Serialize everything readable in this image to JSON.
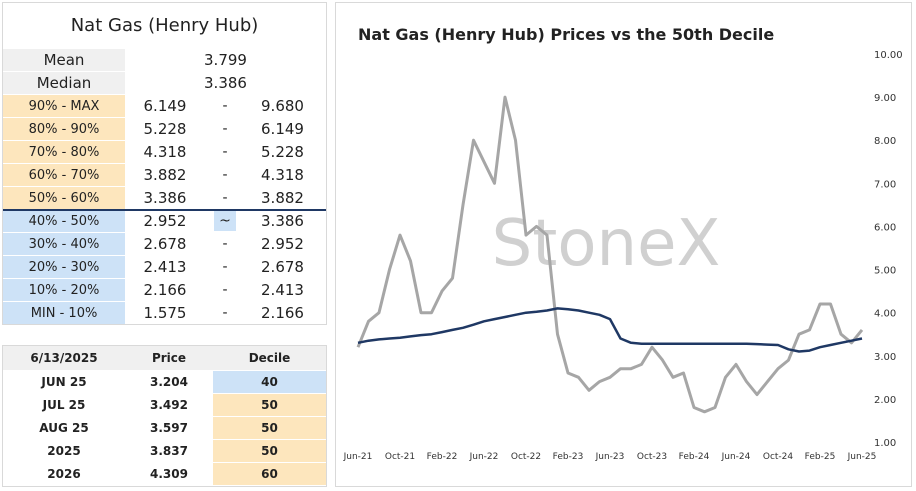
{
  "summary": {
    "title": "Nat Gas (Henry Hub)",
    "stats": [
      {
        "label": "Mean",
        "value": "3.799"
      },
      {
        "label": "Median",
        "value": "3.386"
      }
    ],
    "ranges": [
      {
        "label": "90% - MAX",
        "low": "6.149",
        "sep": "-",
        "high": "9.680"
      },
      {
        "label": "80% - 90%",
        "low": "5.228",
        "sep": "-",
        "high": "6.149"
      },
      {
        "label": "70% - 80%",
        "low": "4.318",
        "sep": "-",
        "high": "5.228"
      },
      {
        "label": "60% - 70%",
        "low": "3.882",
        "sep": "-",
        "high": "4.318"
      },
      {
        "label": "50% - 60%",
        "low": "3.386",
        "sep": "-",
        "high": "3.882"
      },
      {
        "label": "40% - 50%",
        "low": "2.952",
        "sep": "~",
        "high": "3.386"
      },
      {
        "label": "30% - 40%",
        "low": "2.678",
        "sep": "-",
        "high": "2.952"
      },
      {
        "label": "20% - 30%",
        "low": "2.413",
        "sep": "-",
        "high": "2.678"
      },
      {
        "label": "10% - 20%",
        "low": "2.166",
        "sep": "-",
        "high": "2.413"
      },
      {
        "label": "MIN - 10%",
        "low": "1.575",
        "sep": "-",
        "high": "2.166"
      }
    ]
  },
  "contracts": {
    "header": [
      "6/13/2025",
      "Price",
      "Decile"
    ],
    "rows": [
      [
        "JUN 25",
        "3.204",
        "40"
      ],
      [
        "JUL 25",
        "3.492",
        "50"
      ],
      [
        "AUG 25",
        "3.597",
        "50"
      ],
      [
        "2025",
        "3.837",
        "50"
      ],
      [
        "2026",
        "4.309",
        "60"
      ]
    ]
  },
  "chart_data": {
    "type": "line",
    "title": "Nat Gas (Henry Hub) Prices vs the 50th Decile",
    "watermark": "StoneX",
    "categories": [
      "Jun-21",
      null,
      null,
      null,
      "Oct-21",
      null,
      null,
      null,
      "Feb-22",
      null,
      null,
      null,
      "Jun-22",
      null,
      null,
      null,
      "Oct-22",
      null,
      null,
      null,
      "Feb-23",
      null,
      null,
      null,
      "Jun-23",
      null,
      null,
      null,
      "Oct-23",
      null,
      null,
      null,
      "Feb-24",
      null,
      null,
      null,
      "Jun-24",
      null,
      null,
      null,
      "Oct-24",
      null,
      null,
      null,
      "Feb-25",
      null,
      null,
      null,
      "Jun-25"
    ],
    "series": [
      {
        "name": "Price",
        "color": "#a6a6a6",
        "values": [
          3.2,
          3.8,
          4.0,
          5.0,
          5.8,
          5.2,
          4.0,
          4.0,
          4.5,
          4.8,
          6.5,
          8.0,
          7.5,
          7.0,
          9.0,
          8.0,
          5.8,
          6.0,
          5.8,
          3.5,
          2.6,
          2.5,
          2.2,
          2.4,
          2.5,
          2.7,
          2.7,
          2.8,
          3.2,
          2.9,
          2.5,
          2.6,
          1.8,
          1.7,
          1.8,
          2.5,
          2.8,
          2.4,
          2.1,
          2.4,
          2.7,
          2.9,
          3.5,
          3.6,
          4.2,
          4.2,
          3.5,
          3.3,
          3.6
        ]
      },
      {
        "name": "50th Decile",
        "color": "#1f3864",
        "values": [
          3.3,
          3.35,
          3.38,
          3.4,
          3.42,
          3.45,
          3.48,
          3.5,
          3.55,
          3.6,
          3.65,
          3.72,
          3.8,
          3.85,
          3.9,
          3.95,
          4.0,
          4.02,
          4.05,
          4.1,
          4.08,
          4.05,
          4.0,
          3.95,
          3.85,
          3.4,
          3.3,
          3.28,
          3.28,
          3.28,
          3.28,
          3.28,
          3.28,
          3.28,
          3.28,
          3.28,
          3.28,
          3.28,
          3.27,
          3.26,
          3.25,
          3.15,
          3.1,
          3.12,
          3.2,
          3.25,
          3.3,
          3.35,
          3.4
        ]
      }
    ],
    "ylim": [
      1,
      10
    ],
    "yticks": [
      {
        "value": 1,
        "label": "1.00"
      },
      {
        "value": 2,
        "label": "2.00"
      },
      {
        "value": 3,
        "label": "3.00"
      },
      {
        "value": 4,
        "label": "4.00"
      },
      {
        "value": 5,
        "label": "5.00"
      },
      {
        "value": 6,
        "label": "6.00"
      },
      {
        "value": 7,
        "label": "7.00"
      },
      {
        "value": 8,
        "label": "8.00"
      },
      {
        "value": 9,
        "label": "9.00"
      },
      {
        "value": 10,
        "label": "10.00"
      }
    ]
  }
}
